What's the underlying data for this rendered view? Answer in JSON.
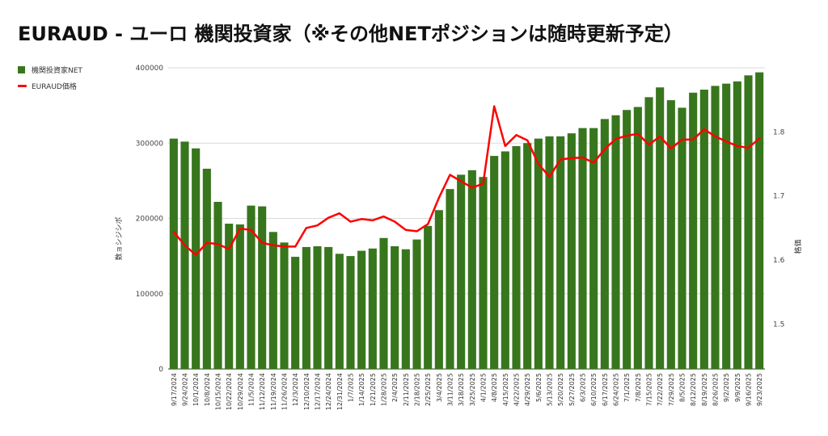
{
  "chart_data": {
    "type": "bar",
    "title": "EURAUD - ユーロ 機関投資家（※その他NETポジションは随時更新予定）",
    "ylabel": "数ョシジシポ",
    "y2label": "格価",
    "ylim": [
      0,
      400000
    ],
    "y2lim": [
      1.43,
      1.9
    ],
    "yticks": [
      "0",
      "100000",
      "200000",
      "300000",
      "400000"
    ],
    "y2ticks": [
      "1.5",
      "1.6",
      "1.7",
      "1.8"
    ],
    "legend_position": "top-left",
    "grid": true,
    "categories": [
      "9/17/2024",
      "9/24/2024",
      "10/1/2024",
      "10/8/2024",
      "10/15/2024",
      "10/22/2024",
      "10/29/2024",
      "11/5/2024",
      "11/12/2024",
      "11/19/2024",
      "11/26/2024",
      "12/3/2024",
      "12/10/2024",
      "12/17/2024",
      "12/24/2024",
      "12/31/2024",
      "1/7/2025",
      "1/14/2025",
      "1/21/2025",
      "1/28/2025",
      "2/4/2025",
      "2/11/2025",
      "2/18/2025",
      "2/25/2025",
      "3/4/2025",
      "3/11/2025",
      "3/18/2025",
      "3/25/2025",
      "4/1/2025",
      "4/8/2025",
      "4/15/2025",
      "4/22/2025",
      "4/29/2025",
      "5/6/2025",
      "5/13/2025",
      "5/20/2025",
      "5/27/2025",
      "6/3/2025",
      "6/10/2025",
      "6/17/2025",
      "6/24/2025",
      "7/1/2025",
      "7/8/2025",
      "7/15/2025",
      "7/22/2025",
      "7/29/2025",
      "8/5/2025",
      "8/12/2025",
      "8/19/2025",
      "8/26/2025",
      "9/2/2025",
      "9/9/2025",
      "9/16/2025",
      "9/23/2025"
    ],
    "visible_tick_labels": [
      "9/17/2024",
      "9/24/2024",
      "10/1/2024",
      "10/8/2024",
      "10/15/2024",
      "10/22/2024",
      "10/29/2024",
      "11/5/2024",
      "11/12/2024",
      "11/19/2024",
      "11/26/2024",
      "12/3/2024",
      "12/10/2024",
      "12/17/2024",
      "12/24/2024",
      "12/31/2024",
      "1/7/2025",
      "1/14/2025",
      "1/21/2025",
      "1/28/2025",
      "2/4/2025",
      "2/11/2025",
      "2/18/2025",
      "2/25/2025",
      "3/4/2025",
      "3/11/2025",
      "3/18/2025",
      "3/25/2025",
      "4/1/2025",
      "4/8/2025",
      "4/15/2025",
      "4/22/2025",
      "4/29/2025",
      "5/6/2025",
      "5/13/2025",
      "5/20/2025",
      "5/27/2025",
      "6/3/2025",
      "6/10/2025",
      "6/17/2025",
      "6/24/2025",
      "7/1/2025",
      "7/8/2025",
      "7/15/2025",
      "7/22/2025",
      "7/29/2025",
      "8/5/2025",
      "8/12/2025",
      "8/19/2025",
      "8/26/2025",
      "9/2/2025",
      "9/9/2025",
      "9/16/2025",
      "9/23/2025"
    ],
    "series": [
      {
        "name": "機関投資家NET",
        "type": "bar",
        "axis": "left",
        "color": "#38761d",
        "values": [
          306000,
          302000,
          293000,
          266000,
          222000,
          193000,
          192000,
          217000,
          216000,
          182000,
          168000,
          149000,
          162000,
          163000,
          162000,
          153000,
          150000,
          157000,
          160000,
          174000,
          163000,
          159000,
          172000,
          190000,
          211000,
          239000,
          258000,
          264000,
          255000,
          283000,
          289000,
          296000,
          300000,
          306000,
          309000,
          309000,
          313000,
          320000,
          320000,
          332000,
          337000,
          344000,
          348000,
          361000,
          374000,
          357000,
          347000,
          367000,
          371000,
          376000,
          379000,
          382000,
          390000,
          394000
        ]
      },
      {
        "name": "EURAUD価格",
        "type": "line",
        "axis": "right",
        "color": "#ff0000",
        "values": [
          1.644,
          1.623,
          1.608,
          1.627,
          1.625,
          1.617,
          1.649,
          1.647,
          1.627,
          1.623,
          1.621,
          1.621,
          1.65,
          1.654,
          1.666,
          1.673,
          1.66,
          1.664,
          1.662,
          1.668,
          1.66,
          1.647,
          1.645,
          1.656,
          1.697,
          1.733,
          1.723,
          1.713,
          1.719,
          1.84,
          1.778,
          1.795,
          1.787,
          1.75,
          1.73,
          1.757,
          1.759,
          1.76,
          1.752,
          1.773,
          1.789,
          1.794,
          1.797,
          1.78,
          1.793,
          1.774,
          1.788,
          1.788,
          1.804,
          1.793,
          1.785,
          1.778,
          1.775,
          1.79
        ]
      }
    ]
  }
}
